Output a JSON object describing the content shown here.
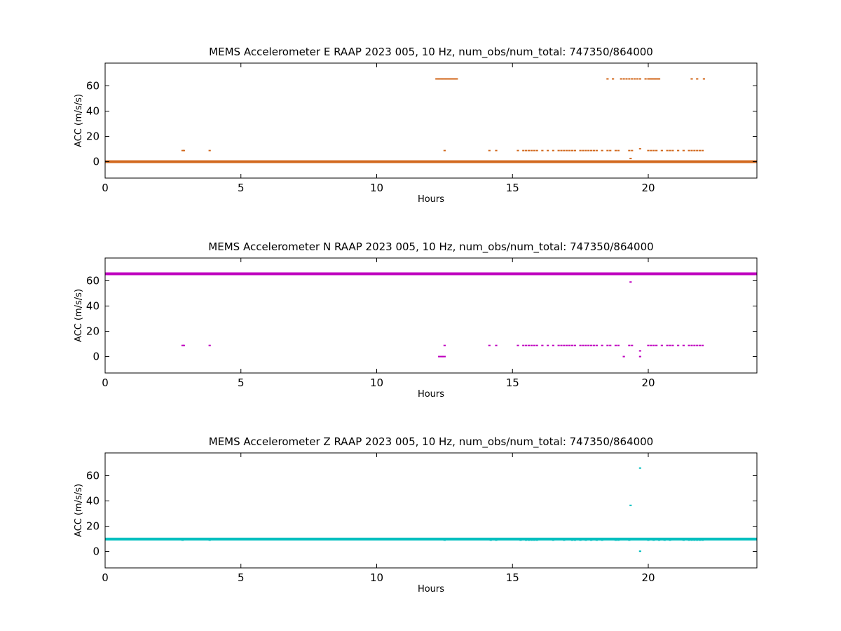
{
  "chart_data": [
    {
      "type": "scatter",
      "title": "MEMS Accelerometer E RAAP 2023 005, 10 Hz, num_obs/num_total: 747350/864000",
      "xlabel": "Hours",
      "ylabel": "ACC (m/s/s)",
      "xlim": [
        0,
        24
      ],
      "ylim": [
        -13,
        78
      ],
      "xticks": [
        "0",
        "5",
        "10",
        "15",
        "20"
      ],
      "yticks": [
        "0",
        "20",
        "40",
        "60"
      ],
      "grid": false,
      "color": "#d2691e",
      "baseline": {
        "y": 0,
        "x_start": 0,
        "x_end": 24
      },
      "levels": [
        {
          "y": 65.5,
          "x": [
            12.2,
            12.25,
            12.3,
            12.35,
            12.4,
            12.45,
            12.5,
            12.55,
            12.6,
            12.65,
            12.7,
            12.75,
            12.8,
            12.85,
            12.9,
            12.95,
            18.5,
            18.7,
            19.0,
            19.1,
            19.2,
            19.3,
            19.4,
            19.5,
            19.6,
            19.7,
            19.9,
            20.0,
            20.05,
            20.1,
            20.15,
            20.2,
            20.25,
            20.3,
            20.35,
            20.4,
            21.6,
            21.8,
            22.05
          ]
        },
        {
          "y": 8.8,
          "x": [
            2.85,
            2.9,
            3.85,
            12.5,
            14.15,
            14.4,
            15.2,
            15.4,
            15.5,
            15.6,
            15.7,
            15.8,
            15.9,
            16.1,
            16.3,
            16.5,
            16.7,
            16.8,
            16.9,
            17.0,
            17.1,
            17.2,
            17.3,
            17.5,
            17.6,
            17.7,
            17.8,
            17.9,
            18.0,
            18.1,
            18.3,
            18.5,
            18.6,
            18.8,
            18.9,
            19.3,
            19.4,
            20.0,
            20.1,
            20.2,
            20.3,
            20.5,
            20.7,
            20.8,
            20.9,
            21.1,
            21.3,
            21.5,
            21.6,
            21.7,
            21.8,
            21.9,
            22.0
          ]
        },
        {
          "y": 10.2,
          "x": [
            19.7
          ]
        },
        {
          "y": 2.5,
          "x": [
            19.35
          ]
        }
      ]
    },
    {
      "type": "scatter",
      "title": "MEMS Accelerometer N RAAP 2023 005, 10 Hz, num_obs/num_total: 747350/864000",
      "xlabel": "Hours",
      "ylabel": "ACC (m/s/s)",
      "xlim": [
        0,
        24
      ],
      "ylim": [
        -13,
        78
      ],
      "xticks": [
        "0",
        "5",
        "10",
        "15",
        "20"
      ],
      "yticks": [
        "0",
        "20",
        "40",
        "60"
      ],
      "grid": false,
      "color": "#bf00bf",
      "baseline": {
        "y": 65.5,
        "x_start": 0,
        "x_end": 24
      },
      "levels": [
        {
          "y": 8.8,
          "x": [
            2.85,
            2.9,
            3.85,
            12.5,
            14.15,
            14.4,
            15.2,
            15.4,
            15.5,
            15.6,
            15.7,
            15.8,
            15.9,
            16.1,
            16.3,
            16.5,
            16.7,
            16.8,
            16.9,
            17.0,
            17.1,
            17.2,
            17.3,
            17.5,
            17.6,
            17.7,
            17.8,
            17.9,
            18.0,
            18.1,
            18.3,
            18.5,
            18.6,
            18.8,
            18.9,
            19.3,
            19.4,
            20.0,
            20.1,
            20.2,
            20.3,
            20.5,
            20.7,
            20.8,
            20.9,
            21.1,
            21.3,
            21.5,
            21.6,
            21.7,
            21.8,
            21.9,
            22.0
          ]
        },
        {
          "y": 0,
          "x": [
            12.3,
            12.35,
            12.4,
            12.45,
            12.5,
            19.1,
            19.7
          ]
        },
        {
          "y": 59,
          "x": [
            19.35
          ]
        },
        {
          "y": 4.5,
          "x": [
            19.7
          ]
        }
      ]
    },
    {
      "type": "scatter",
      "title": "MEMS Accelerometer Z RAAP 2023 005, 10 Hz, num_obs/num_total: 747350/864000",
      "xlabel": "Hours",
      "ylabel": "ACC (m/s/s)",
      "xlim": [
        0,
        24
      ],
      "ylim": [
        -13,
        78
      ],
      "xticks": [
        "0",
        "5",
        "10",
        "15",
        "20"
      ],
      "yticks": [
        "0",
        "20",
        "40",
        "60"
      ],
      "grid": false,
      "color": "#00bfbf",
      "baseline": {
        "y": 9.8,
        "x_start": 0,
        "x_end": 24
      },
      "levels": [
        {
          "y": 9.0,
          "x": [
            2.85,
            3.85,
            12.5,
            14.2,
            14.4,
            15.3,
            15.5,
            15.6,
            15.7,
            15.8,
            15.9,
            16.5,
            16.9,
            17.2,
            17.3,
            17.5,
            17.7,
            17.9,
            18.1,
            18.3,
            18.8,
            18.9,
            19.3,
            20.0,
            20.2,
            20.4,
            20.6,
            20.8,
            21.3,
            21.5,
            21.6,
            21.7,
            21.8,
            21.9,
            22.0
          ]
        },
        {
          "y": 66,
          "x": [
            19.7
          ]
        },
        {
          "y": 36.5,
          "x": [
            19.35
          ]
        },
        {
          "y": 0.2,
          "x": [
            19.7
          ]
        }
      ]
    }
  ]
}
